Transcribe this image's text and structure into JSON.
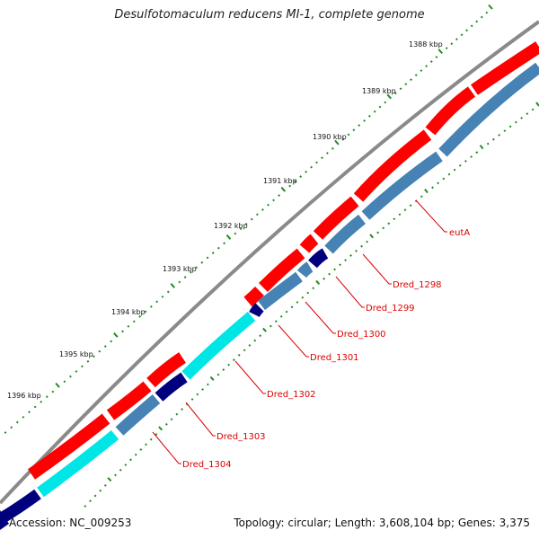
{
  "title": "Desulfotomaculum reducens MI-1, complete genome",
  "accession": "Accession: NC_009253",
  "topology": "Topology: circular; Length: 3,608,104 bp; Genes: 3,375",
  "colors": {
    "backbone": "#8a8a8a",
    "forward_cds": "#ff0000",
    "reverse_cds": "#4682b4",
    "cyan_cds": "#00e5e5",
    "dark_cds": "#00007f",
    "ticks": "#228b22",
    "label_line": "#dd0000"
  },
  "kbp_labels": [
    "1388 kbp",
    "1389 kbp",
    "1390 kbp",
    "1391 kbp",
    "1392 kbp",
    "1393 kbp",
    "1394 kbp",
    "1395 kbp",
    "1396 kbp"
  ],
  "gene_labels": [
    "eutA",
    "Dred_1298",
    "Dred_1299",
    "Dred_1300",
    "Dred_1301",
    "Dred_1302",
    "Dred_1303",
    "Dred_1304"
  ]
}
